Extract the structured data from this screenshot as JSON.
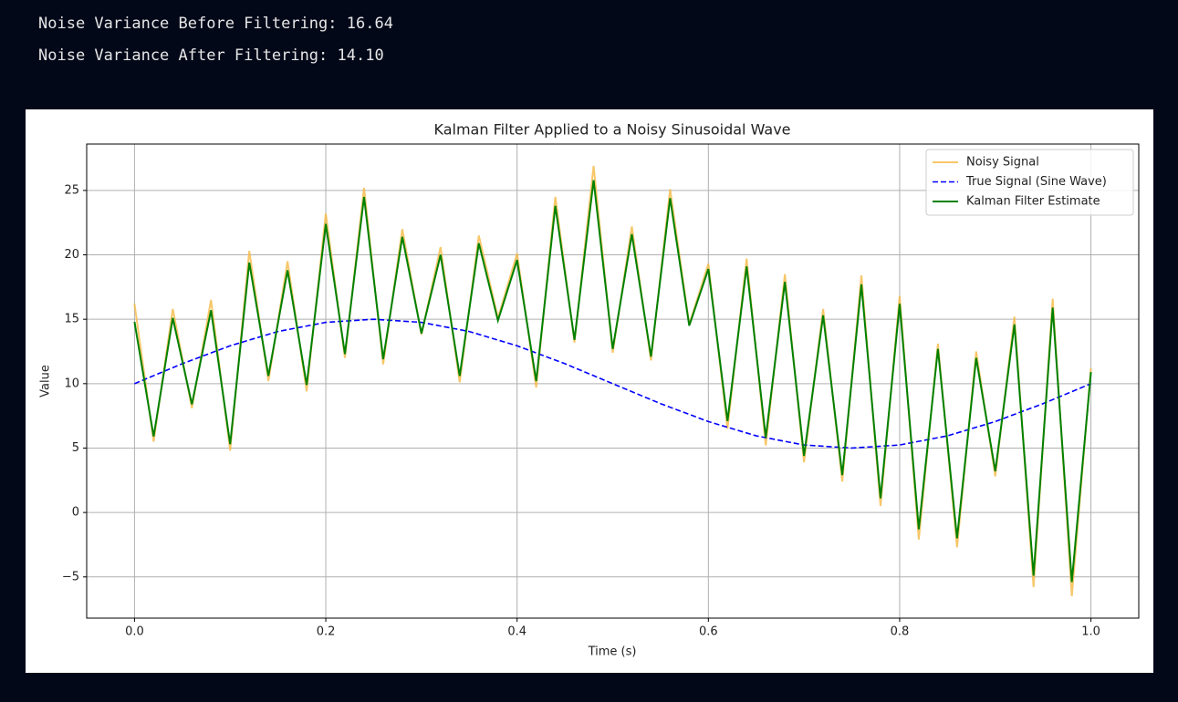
{
  "output_lines": [
    "Noise Variance Before Filtering: 16.64",
    "Noise Variance After Filtering: 14.10"
  ],
  "chart_data": {
    "type": "line",
    "title": "Kalman Filter Applied to a Noisy Sinusoidal Wave",
    "x_label": "Time (s)",
    "y_label": "Value",
    "xlim": [
      -0.05,
      1.05
    ],
    "ylim": [
      -8.2,
      28.6
    ],
    "xticks": [
      {
        "value": 0,
        "label": "0.0"
      },
      0.2,
      0.4,
      0.6,
      0.8,
      {
        "value": 1,
        "label": "1.0"
      }
    ],
    "yticks": [
      {
        "value": -5,
        "label": "−5"
      },
      0,
      5,
      10,
      15,
      20,
      25
    ],
    "grid": true,
    "legend": "upper right",
    "series": [
      {
        "name": "Noisy Signal",
        "color": "#f5b945",
        "style": "solid",
        "x": [
          0,
          0.02,
          0.04,
          0.06,
          0.08,
          0.1,
          0.12,
          0.14,
          0.16,
          0.18,
          0.2,
          0.22,
          0.24,
          0.26,
          0.28,
          0.3,
          0.32,
          0.34,
          0.36,
          0.38,
          0.4,
          0.42,
          0.44,
          0.46,
          0.48,
          0.5,
          0.52,
          0.54,
          0.56,
          0.58,
          0.6,
          0.62,
          0.64,
          0.66,
          0.68,
          0.7,
          0.72,
          0.74,
          0.76,
          0.78,
          0.8,
          0.82,
          0.84,
          0.86,
          0.88,
          0.9,
          0.92,
          0.94,
          0.96,
          0.98,
          1.0
        ],
        "values": [
          16.2,
          5.5,
          15.8,
          8.1,
          16.5,
          4.8,
          20.3,
          10.2,
          19.5,
          9.4,
          23.2,
          12.0,
          25.2,
          11.5,
          22.0,
          13.8,
          20.6,
          10.1,
          21.5,
          15.1,
          20.1,
          9.7,
          24.5,
          13.2,
          26.9,
          12.4,
          22.2,
          11.8,
          25.1,
          14.6,
          19.3,
          6.5,
          19.7,
          5.2,
          18.5,
          3.9,
          15.8,
          2.4,
          18.4,
          0.5,
          16.8,
          -2.1,
          13.1,
          -2.7,
          12.5,
          2.8,
          15.2,
          -5.8,
          16.6,
          -6.5,
          11.2
        ]
      },
      {
        "name": "True Signal (Sine Wave)",
        "color": "#0000ff",
        "style": "dashed",
        "x": [
          0,
          0.05,
          0.1,
          0.15,
          0.2,
          0.25,
          0.3,
          0.35,
          0.4,
          0.45,
          0.5,
          0.55,
          0.6,
          0.65,
          0.7,
          0.75,
          0.8,
          0.85,
          0.9,
          0.95,
          1.0
        ],
        "values": [
          10,
          11.55,
          12.94,
          14.05,
          14.76,
          15,
          14.76,
          14.05,
          12.94,
          11.55,
          10,
          8.45,
          7.06,
          5.95,
          5.24,
          5,
          5.24,
          5.95,
          7.06,
          8.45,
          10
        ]
      },
      {
        "name": "Kalman Filter Estimate",
        "color": "#008000",
        "style": "solid",
        "x": [
          0,
          0.02,
          0.04,
          0.06,
          0.08,
          0.1,
          0.12,
          0.14,
          0.16,
          0.18,
          0.2,
          0.22,
          0.24,
          0.26,
          0.28,
          0.3,
          0.32,
          0.34,
          0.36,
          0.38,
          0.4,
          0.42,
          0.44,
          0.46,
          0.48,
          0.5,
          0.52,
          0.54,
          0.56,
          0.58,
          0.6,
          0.62,
          0.64,
          0.66,
          0.68,
          0.7,
          0.72,
          0.74,
          0.76,
          0.78,
          0.8,
          0.82,
          0.84,
          0.86,
          0.88,
          0.9,
          0.92,
          0.94,
          0.96,
          0.98,
          1.0
        ],
        "values": [
          14.8,
          5.9,
          15.1,
          8.4,
          15.7,
          5.3,
          19.4,
          10.6,
          18.8,
          9.9,
          22.4,
          12.3,
          24.5,
          11.9,
          21.4,
          13.9,
          20.0,
          10.6,
          20.9,
          14.9,
          19.6,
          10.2,
          23.8,
          13.4,
          25.8,
          12.7,
          21.6,
          12.1,
          24.4,
          14.5,
          18.9,
          7.1,
          19.1,
          5.8,
          17.9,
          4.4,
          15.3,
          2.9,
          17.7,
          1.1,
          16.2,
          -1.3,
          12.7,
          -2.0,
          12.0,
          3.2,
          14.6,
          -4.9,
          15.9,
          -5.4,
          10.9
        ]
      }
    ]
  }
}
